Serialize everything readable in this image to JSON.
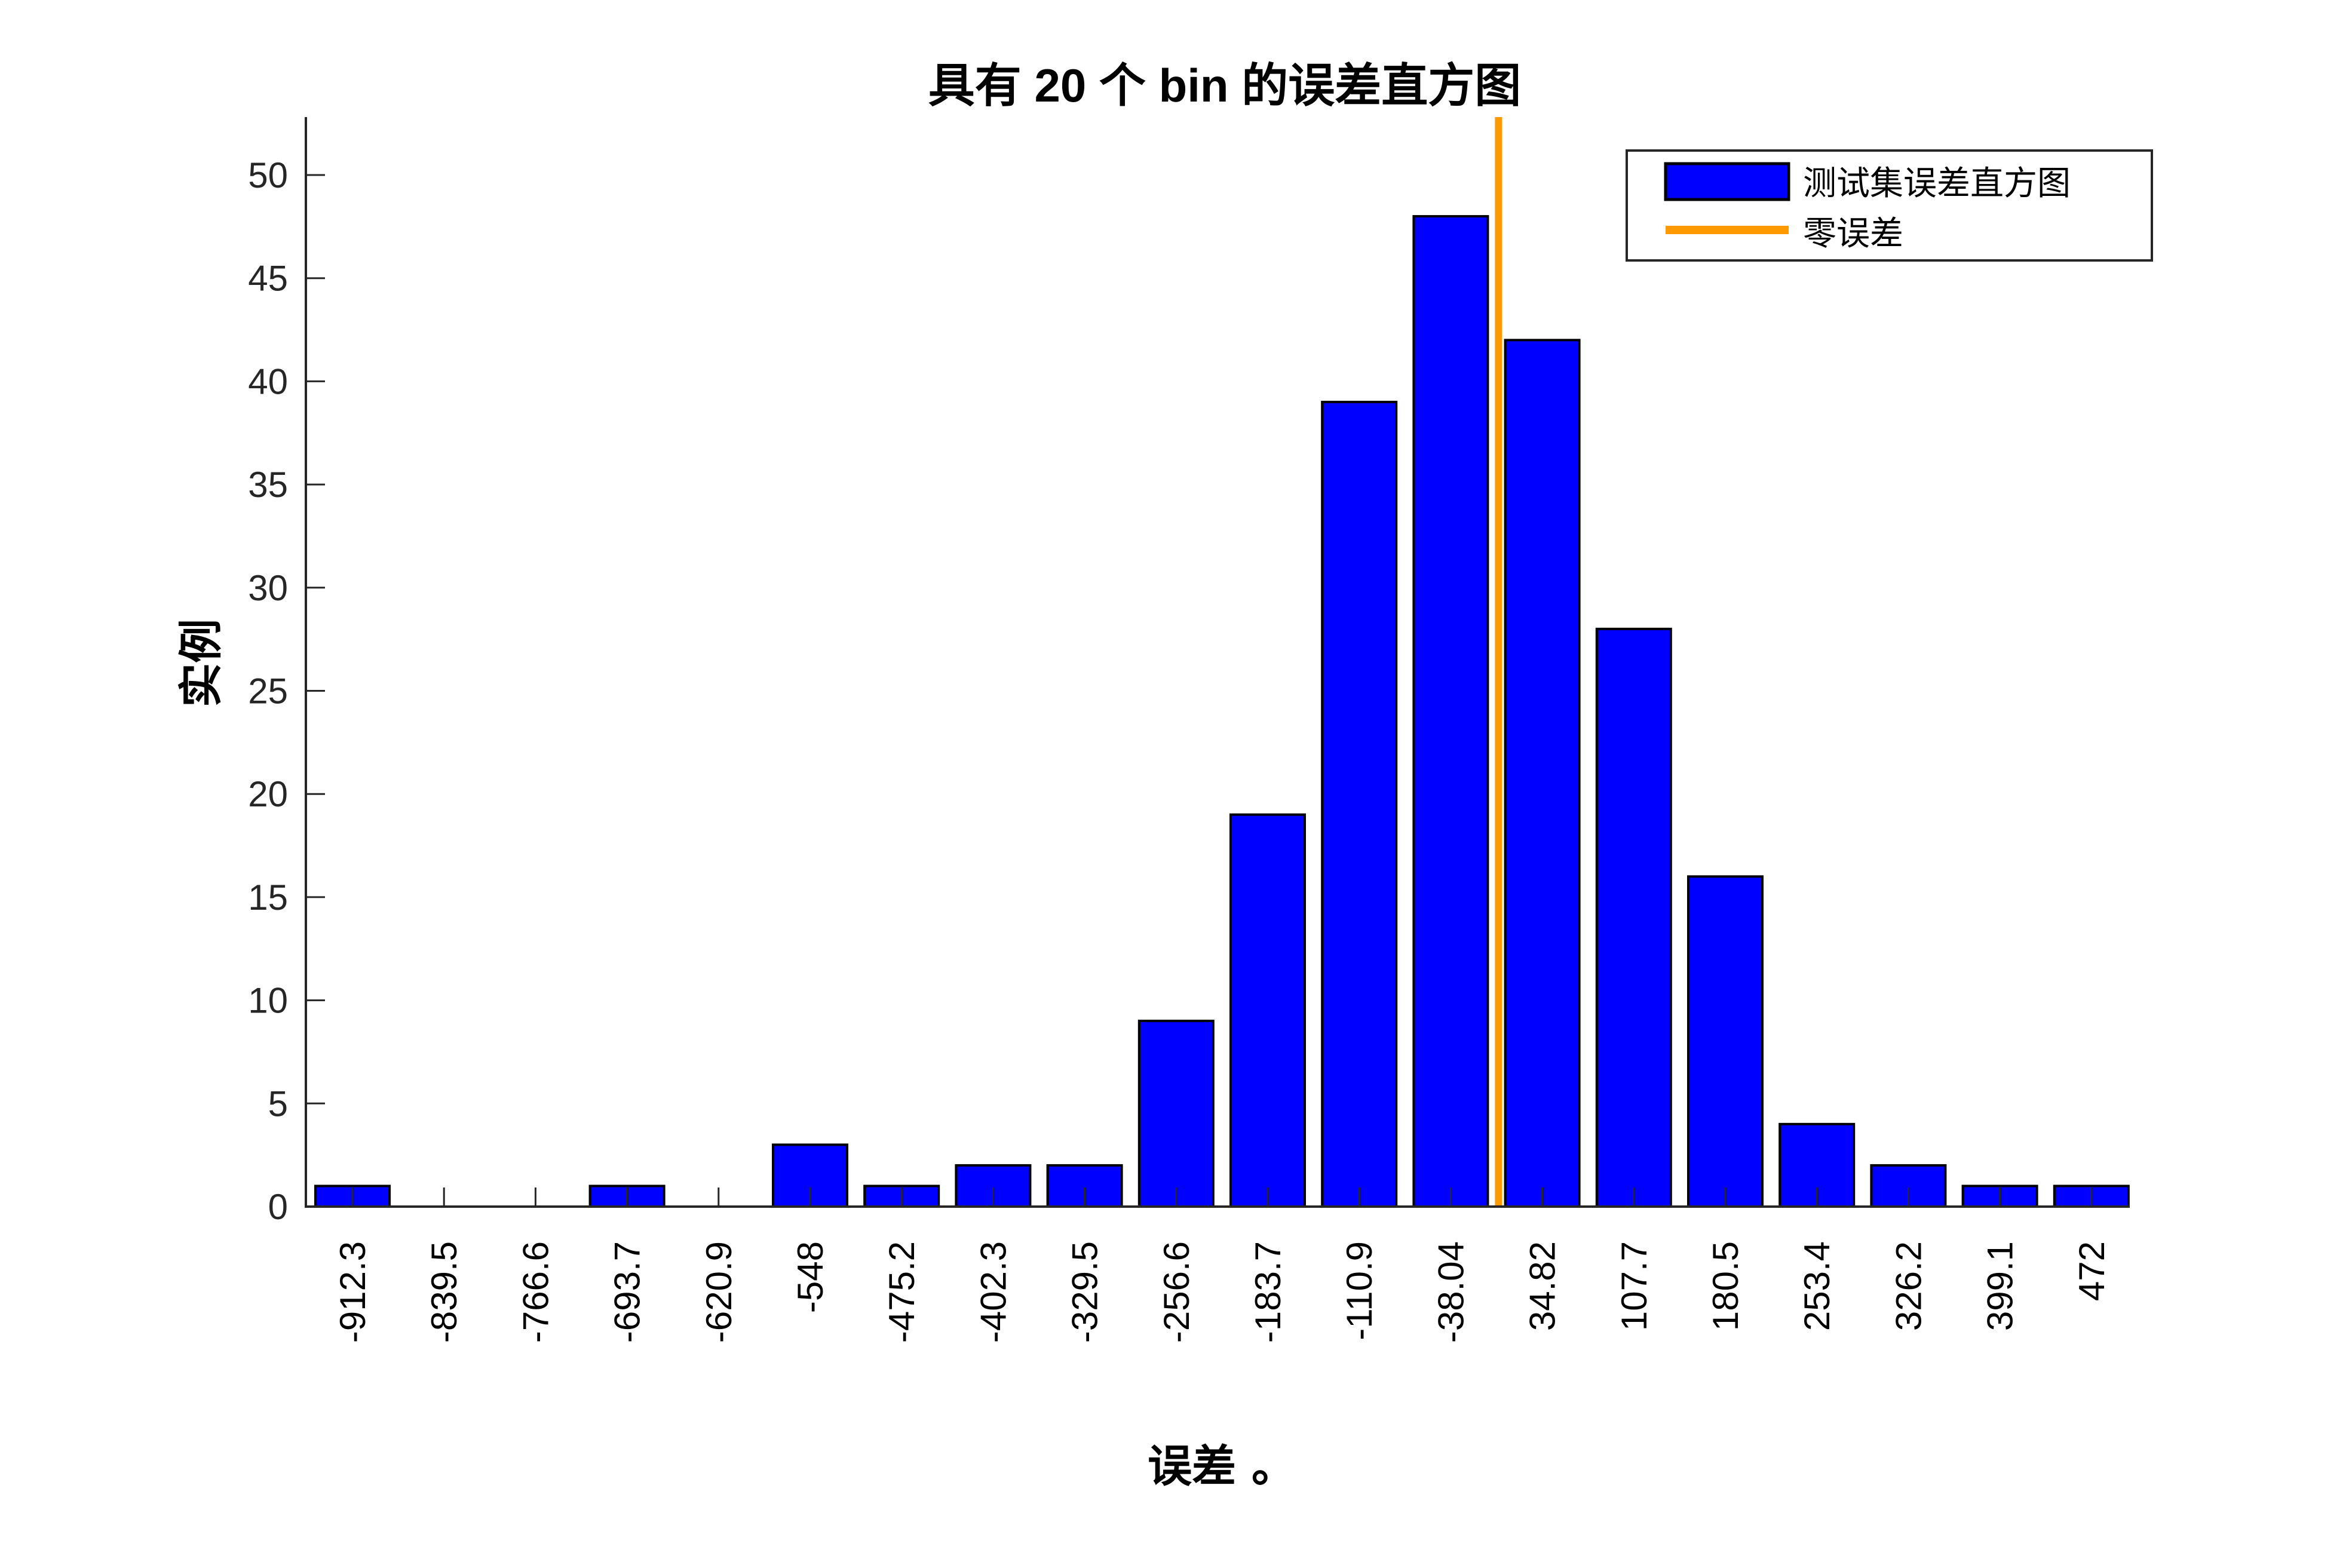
{
  "chart_data": {
    "type": "bar",
    "title": "具有 20 个 bin 的误差直方图",
    "xlabel": "误差 。",
    "ylabel": "实例",
    "categories": [
      "-912.3",
      "-839.5",
      "-766.6",
      "-693.7",
      "-620.9",
      "-548",
      "-475.2",
      "-402.3",
      "-329.5",
      "-256.6",
      "-183.7",
      "-110.9",
      "-38.04",
      "34.82",
      "107.7",
      "180.5",
      "253.4",
      "326.2",
      "399.1",
      "472"
    ],
    "series": [
      {
        "name": "测试集误差直方图",
        "color": "#0000FF",
        "edge_color": "#000000",
        "values": [
          1,
          0,
          0,
          1,
          0,
          3,
          1,
          2,
          2,
          9,
          19,
          39,
          48,
          42,
          28,
          16,
          4,
          2,
          1,
          1
        ]
      }
    ],
    "reference_lines": [
      {
        "name": "零误差",
        "orientation": "vertical",
        "x": 0,
        "color": "#FF9900"
      }
    ],
    "ylim": [
      0,
      53
    ],
    "yticks": [
      0,
      5,
      10,
      15,
      20,
      25,
      30,
      35,
      40,
      45,
      50
    ],
    "xtick_rotation": 90,
    "grid": false,
    "legend": {
      "position": "top-right",
      "entries": [
        {
          "label": "测试集误差直方图",
          "type": "patch",
          "color": "#0000FF"
        },
        {
          "label": "零误差",
          "type": "line",
          "color": "#FF9900"
        }
      ]
    }
  },
  "title": "具有 20 个 bin 的误差直方图",
  "xlabel": "误差 。",
  "ylabel": "实例",
  "legend": {
    "items": [
      {
        "label": "测试集误差直方图"
      },
      {
        "label": "零误差"
      }
    ]
  }
}
